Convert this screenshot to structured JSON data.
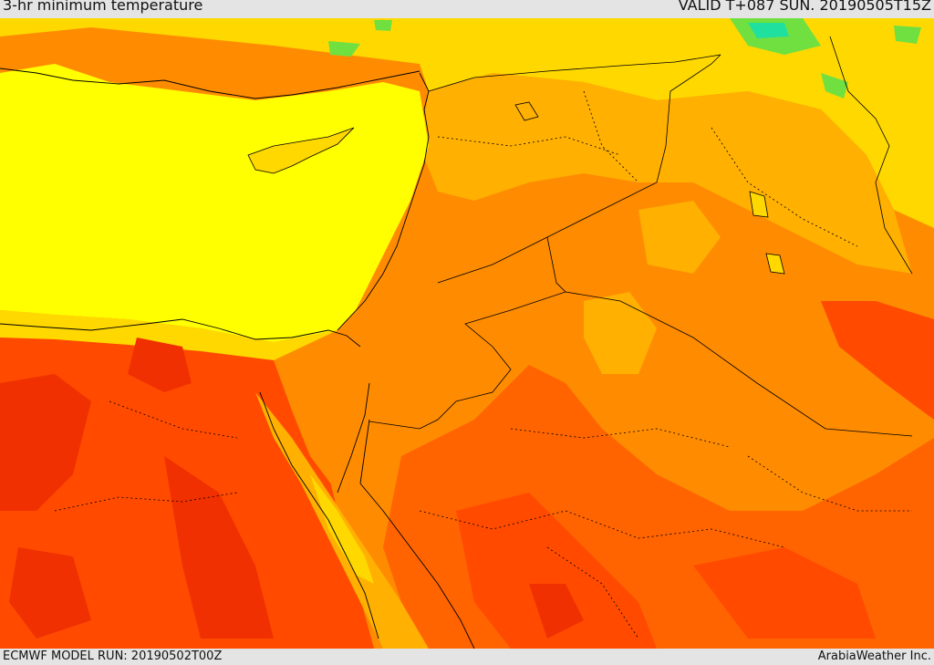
{
  "header": {
    "title": "3-hr minimum temperature",
    "valid": "VALID T+087 SUN. 20190505T15Z"
  },
  "footer": {
    "model_run": "ECMWF MODEL RUN: 20190502T00Z",
    "provider": "ArabiaWeather Inc."
  },
  "palette": {
    "yellow": "#ffff00",
    "yellow_orange": "#ffd800",
    "light_orange": "#ffb000",
    "orange": "#ff8c00",
    "dark_orange": "#ff6400",
    "red_orange": "#ff4a00",
    "red": "#f03000",
    "green": "#70e040",
    "cyan": "#20e0a0"
  }
}
